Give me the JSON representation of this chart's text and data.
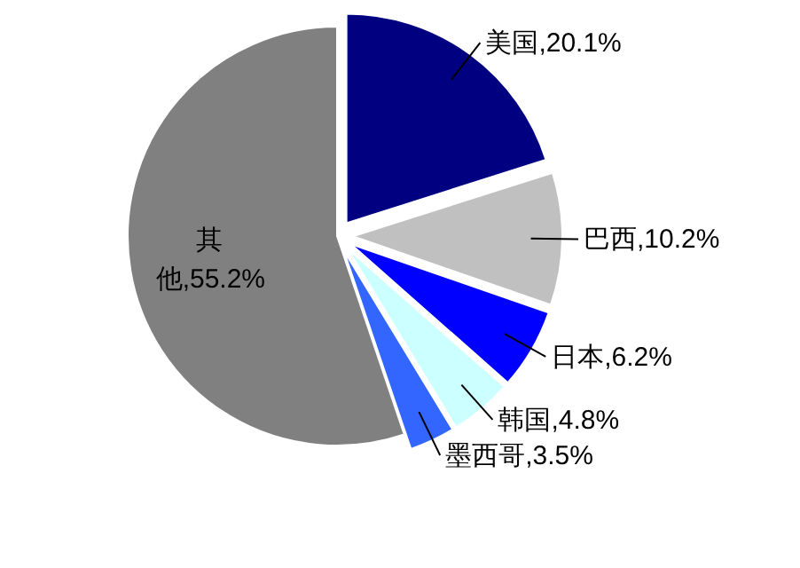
{
  "chart_data": {
    "type": "pie",
    "categories": [
      "美国",
      "巴西",
      "日本",
      "韩国",
      "墨西哥",
      "其他"
    ],
    "values": [
      20.1,
      10.2,
      6.2,
      4.8,
      3.5,
      55.2
    ],
    "value_labels": [
      "20.1%",
      "10.2%",
      "6.2%",
      "4.8%",
      "3.5%",
      "55.2%"
    ],
    "colors": [
      "#000080",
      "#c0c0c0",
      "#0000ff",
      "#ccffff",
      "#3366ff",
      "#808080"
    ]
  }
}
